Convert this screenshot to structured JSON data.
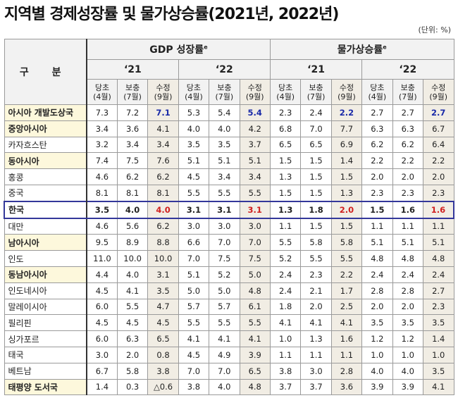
{
  "title": "지역별 경제성장률 및 물가상승률(2021년, 2022년)",
  "unit": "(단위: %)",
  "header": {
    "category": "구 분",
    "groups": [
      {
        "label": "GDP 성장률",
        "sup": "e"
      },
      {
        "label": "물가상승률",
        "sup": "e"
      }
    ],
    "years": [
      "‘21",
      "‘22",
      "‘21",
      "‘22"
    ],
    "subcols": [
      [
        "당초",
        "(4월)"
      ],
      [
        "보충",
        "(7월)"
      ],
      [
        "수정",
        "(9월)"
      ]
    ]
  },
  "rows": [
    {
      "name": "아시아 개발도상국",
      "type": "asia",
      "values": [
        "7.3",
        "7.2",
        "7.1",
        "5.3",
        "5.4",
        "5.4",
        "2.3",
        "2.4",
        "2.2",
        "2.7",
        "2.7",
        "2.7"
      ]
    },
    {
      "name": "중앙아시아",
      "type": "region",
      "values": [
        "3.4",
        "3.6",
        "4.1",
        "4.0",
        "4.0",
        "4.2",
        "6.8",
        "7.0",
        "7.7",
        "6.3",
        "6.3",
        "6.7"
      ]
    },
    {
      "name": "카자흐스탄",
      "type": "country",
      "values": [
        "3.2",
        "3.4",
        "3.4",
        "3.5",
        "3.5",
        "3.7",
        "6.5",
        "6.5",
        "6.9",
        "6.2",
        "6.2",
        "6.4"
      ]
    },
    {
      "name": "동아시아",
      "type": "region",
      "values": [
        "7.4",
        "7.5",
        "7.6",
        "5.1",
        "5.1",
        "5.1",
        "1.5",
        "1.5",
        "1.4",
        "2.2",
        "2.2",
        "2.2"
      ]
    },
    {
      "name": "홍콩",
      "type": "country",
      "values": [
        "4.6",
        "6.2",
        "6.2",
        "4.5",
        "3.4",
        "3.4",
        "1.3",
        "1.5",
        "1.5",
        "2.0",
        "2.0",
        "2.0"
      ]
    },
    {
      "name": "중국",
      "type": "country",
      "values": [
        "8.1",
        "8.1",
        "8.1",
        "5.5",
        "5.5",
        "5.5",
        "1.5",
        "1.5",
        "1.3",
        "2.3",
        "2.3",
        "2.3"
      ]
    },
    {
      "name": "한국",
      "type": "highlight",
      "values": [
        "3.5",
        "4.0",
        "4.0",
        "3.1",
        "3.1",
        "3.1",
        "1.3",
        "1.8",
        "2.0",
        "1.5",
        "1.6",
        "1.6"
      ]
    },
    {
      "name": "대만",
      "type": "country",
      "values": [
        "4.6",
        "5.6",
        "6.2",
        "3.0",
        "3.0",
        "3.0",
        "1.1",
        "1.5",
        "1.5",
        "1.1",
        "1.1",
        "1.1"
      ]
    },
    {
      "name": "남아시아",
      "type": "region",
      "values": [
        "9.5",
        "8.9",
        "8.8",
        "6.6",
        "7.0",
        "7.0",
        "5.5",
        "5.8",
        "5.8",
        "5.1",
        "5.1",
        "5.1"
      ]
    },
    {
      "name": "인도",
      "type": "country",
      "values": [
        "11.0",
        "10.0",
        "10.0",
        "7.0",
        "7.5",
        "7.5",
        "5.2",
        "5.5",
        "5.5",
        "4.8",
        "4.8",
        "4.8"
      ]
    },
    {
      "name": "동남아시아",
      "type": "region",
      "values": [
        "4.4",
        "4.0",
        "3.1",
        "5.1",
        "5.2",
        "5.0",
        "2.4",
        "2.3",
        "2.2",
        "2.4",
        "2.4",
        "2.4"
      ]
    },
    {
      "name": "인도네시아",
      "type": "country",
      "values": [
        "4.5",
        "4.1",
        "3.5",
        "5.0",
        "5.0",
        "4.8",
        "2.4",
        "2.1",
        "1.7",
        "2.8",
        "2.8",
        "2.7"
      ]
    },
    {
      "name": "말레이시아",
      "type": "country",
      "values": [
        "6.0",
        "5.5",
        "4.7",
        "5.7",
        "5.7",
        "6.1",
        "1.8",
        "2.0",
        "2.5",
        "2.0",
        "2.0",
        "2.3"
      ]
    },
    {
      "name": "필리핀",
      "type": "country",
      "values": [
        "4.5",
        "4.5",
        "4.5",
        "5.5",
        "5.5",
        "5.5",
        "4.1",
        "4.1",
        "4.1",
        "3.5",
        "3.5",
        "3.5"
      ]
    },
    {
      "name": "싱가포르",
      "type": "country",
      "values": [
        "6.0",
        "6.3",
        "6.5",
        "4.1",
        "4.1",
        "4.1",
        "1.0",
        "1.3",
        "1.6",
        "1.2",
        "1.2",
        "1.4"
      ]
    },
    {
      "name": "태국",
      "type": "country",
      "values": [
        "3.0",
        "2.0",
        "0.8",
        "4.5",
        "4.9",
        "3.9",
        "1.1",
        "1.1",
        "1.1",
        "1.0",
        "1.0",
        "1.0"
      ]
    },
    {
      "name": "베트남",
      "type": "country",
      "values": [
        "6.7",
        "5.8",
        "3.8",
        "7.0",
        "7.0",
        "6.5",
        "3.8",
        "3.0",
        "2.8",
        "4.0",
        "4.0",
        "3.5"
      ]
    },
    {
      "name": "태평양 도서국",
      "type": "region",
      "values": [
        "1.4",
        "0.3",
        "△0.6",
        "3.8",
        "4.0",
        "4.8",
        "3.7",
        "3.7",
        "3.6",
        "3.9",
        "3.9",
        "4.1"
      ]
    }
  ]
}
